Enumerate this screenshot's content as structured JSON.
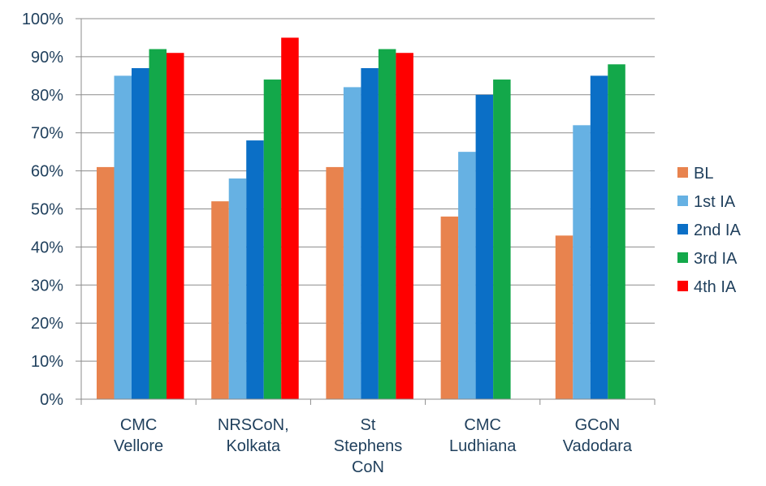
{
  "chart_data": {
    "type": "bar",
    "categories": [
      [
        "CMC",
        "Vellore"
      ],
      [
        "NRSCoN,",
        "Kolkata"
      ],
      [
        "St",
        "Stephens",
        "CoN"
      ],
      [
        "CMC",
        "Ludhiana"
      ],
      [
        "GCoN",
        "Vadodara"
      ]
    ],
    "series": [
      {
        "name": "BL",
        "color": "#e8834e",
        "values": [
          61,
          52,
          61,
          48,
          43
        ]
      },
      {
        "name": "1st IA",
        "color": "#66b1e3",
        "values": [
          85,
          58,
          82,
          65,
          72
        ]
      },
      {
        "name": "2nd IA",
        "color": "#0b6fc6",
        "values": [
          87,
          68,
          87,
          80,
          85
        ]
      },
      {
        "name": "3rd IA",
        "color": "#13a84a",
        "values": [
          92,
          84,
          92,
          84,
          88
        ]
      },
      {
        "name": "4th IA",
        "color": "#ff0000",
        "values": [
          91,
          95,
          91,
          null,
          null
        ]
      }
    ],
    "ylim": [
      0,
      100
    ],
    "yticks": [
      "0%",
      "10%",
      "20%",
      "30%",
      "40%",
      "50%",
      "60%",
      "70%",
      "80%",
      "90%",
      "100%"
    ],
    "grid": true,
    "legend": "right",
    "title": "",
    "xlabel": "",
    "ylabel": ""
  }
}
